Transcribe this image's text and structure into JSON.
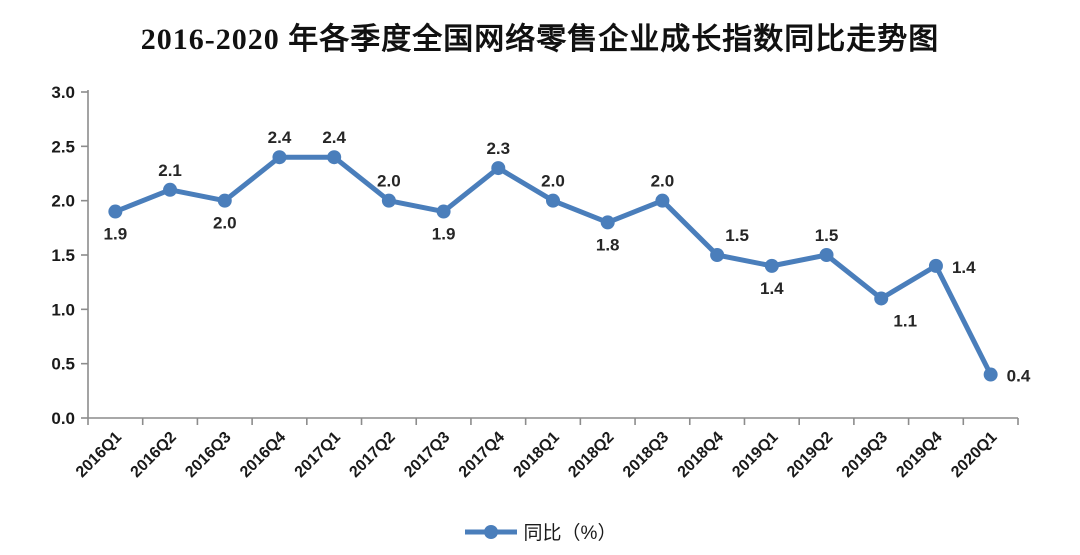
{
  "chart_data": {
    "type": "line",
    "title": "2016-2020 年各季度全国网络零售企业成长指数同比走势图",
    "categories": [
      "2016Q1",
      "2016Q2",
      "2016Q3",
      "2016Q4",
      "2017Q1",
      "2017Q2",
      "2017Q3",
      "2017Q4",
      "2018Q1",
      "2018Q2",
      "2018Q3",
      "2018Q4",
      "2019Q1",
      "2019Q2",
      "2019Q3",
      "2019Q4",
      "2020Q1"
    ],
    "series": [
      {
        "name": "同比（%）",
        "values": [
          1.9,
          2.1,
          2.0,
          2.4,
          2.4,
          2.0,
          1.9,
          2.3,
          2.0,
          1.8,
          2.0,
          1.5,
          1.4,
          1.5,
          1.1,
          1.4,
          0.4
        ],
        "color": "#4A7EBB"
      }
    ],
    "xlabel": "",
    "ylabel": "",
    "ylim": [
      0,
      3
    ],
    "ytick_step": 0.5,
    "ytick_labels": [
      "0.0",
      "0.5",
      "1.0",
      "1.5",
      "2.0",
      "2.5",
      "3.0"
    ],
    "grid": false,
    "legend_position": "bottom",
    "data_labels": {
      "values": [
        "1.9",
        "2.1",
        "2.0",
        "2.4",
        "2.4",
        "2.0",
        "1.9",
        "2.3",
        "2.0",
        "1.8",
        "2.0",
        "1.5",
        "1.4",
        "1.5",
        "1.1",
        "1.4",
        "0.4"
      ],
      "positions": [
        "below",
        "above",
        "below",
        "above",
        "above",
        "above",
        "below",
        "above",
        "above",
        "below",
        "above",
        "above-right",
        "below",
        "above",
        "below-right",
        "right",
        "right"
      ]
    },
    "colors": {
      "line": "#4A7EBB",
      "axis": "#8C8C8C",
      "tick_text": "#1a1a1a",
      "data_label_text": "#262626",
      "background": "#ffffff"
    }
  }
}
